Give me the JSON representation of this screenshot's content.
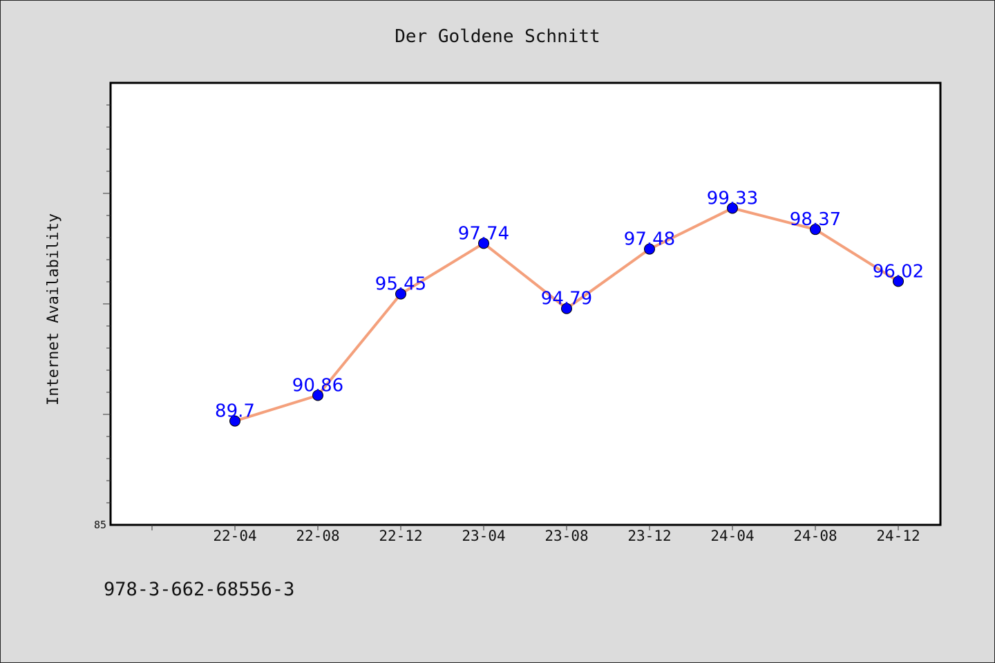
{
  "chart_data": {
    "type": "line",
    "title": "Der Goldene Schnitt",
    "xlabel": "",
    "ylabel": "Internet Availability",
    "categories": [
      "22-04",
      "22-08",
      "22-12",
      "23-04",
      "23-08",
      "23-12",
      "24-04",
      "24-08",
      "24-12"
    ],
    "series": [
      {
        "values": [
          89.7,
          90.86,
          95.45,
          97.74,
          94.79,
          97.48,
          99.33,
          98.37,
          96.02
        ],
        "data_labels": [
          "89.7",
          "90.86",
          "95.45",
          "97.74",
          "94.79",
          "97.48",
          "99.33",
          "98.37",
          "96.02"
        ],
        "line_color": "#f4a07c",
        "marker_color": "#0000ff"
      }
    ],
    "ylim": [
      85,
      105
    ],
    "y_tick_labels": [
      "85"
    ],
    "grid": false,
    "legend": "none"
  },
  "footer": {
    "isbn": "978-3-662-68556-3"
  }
}
